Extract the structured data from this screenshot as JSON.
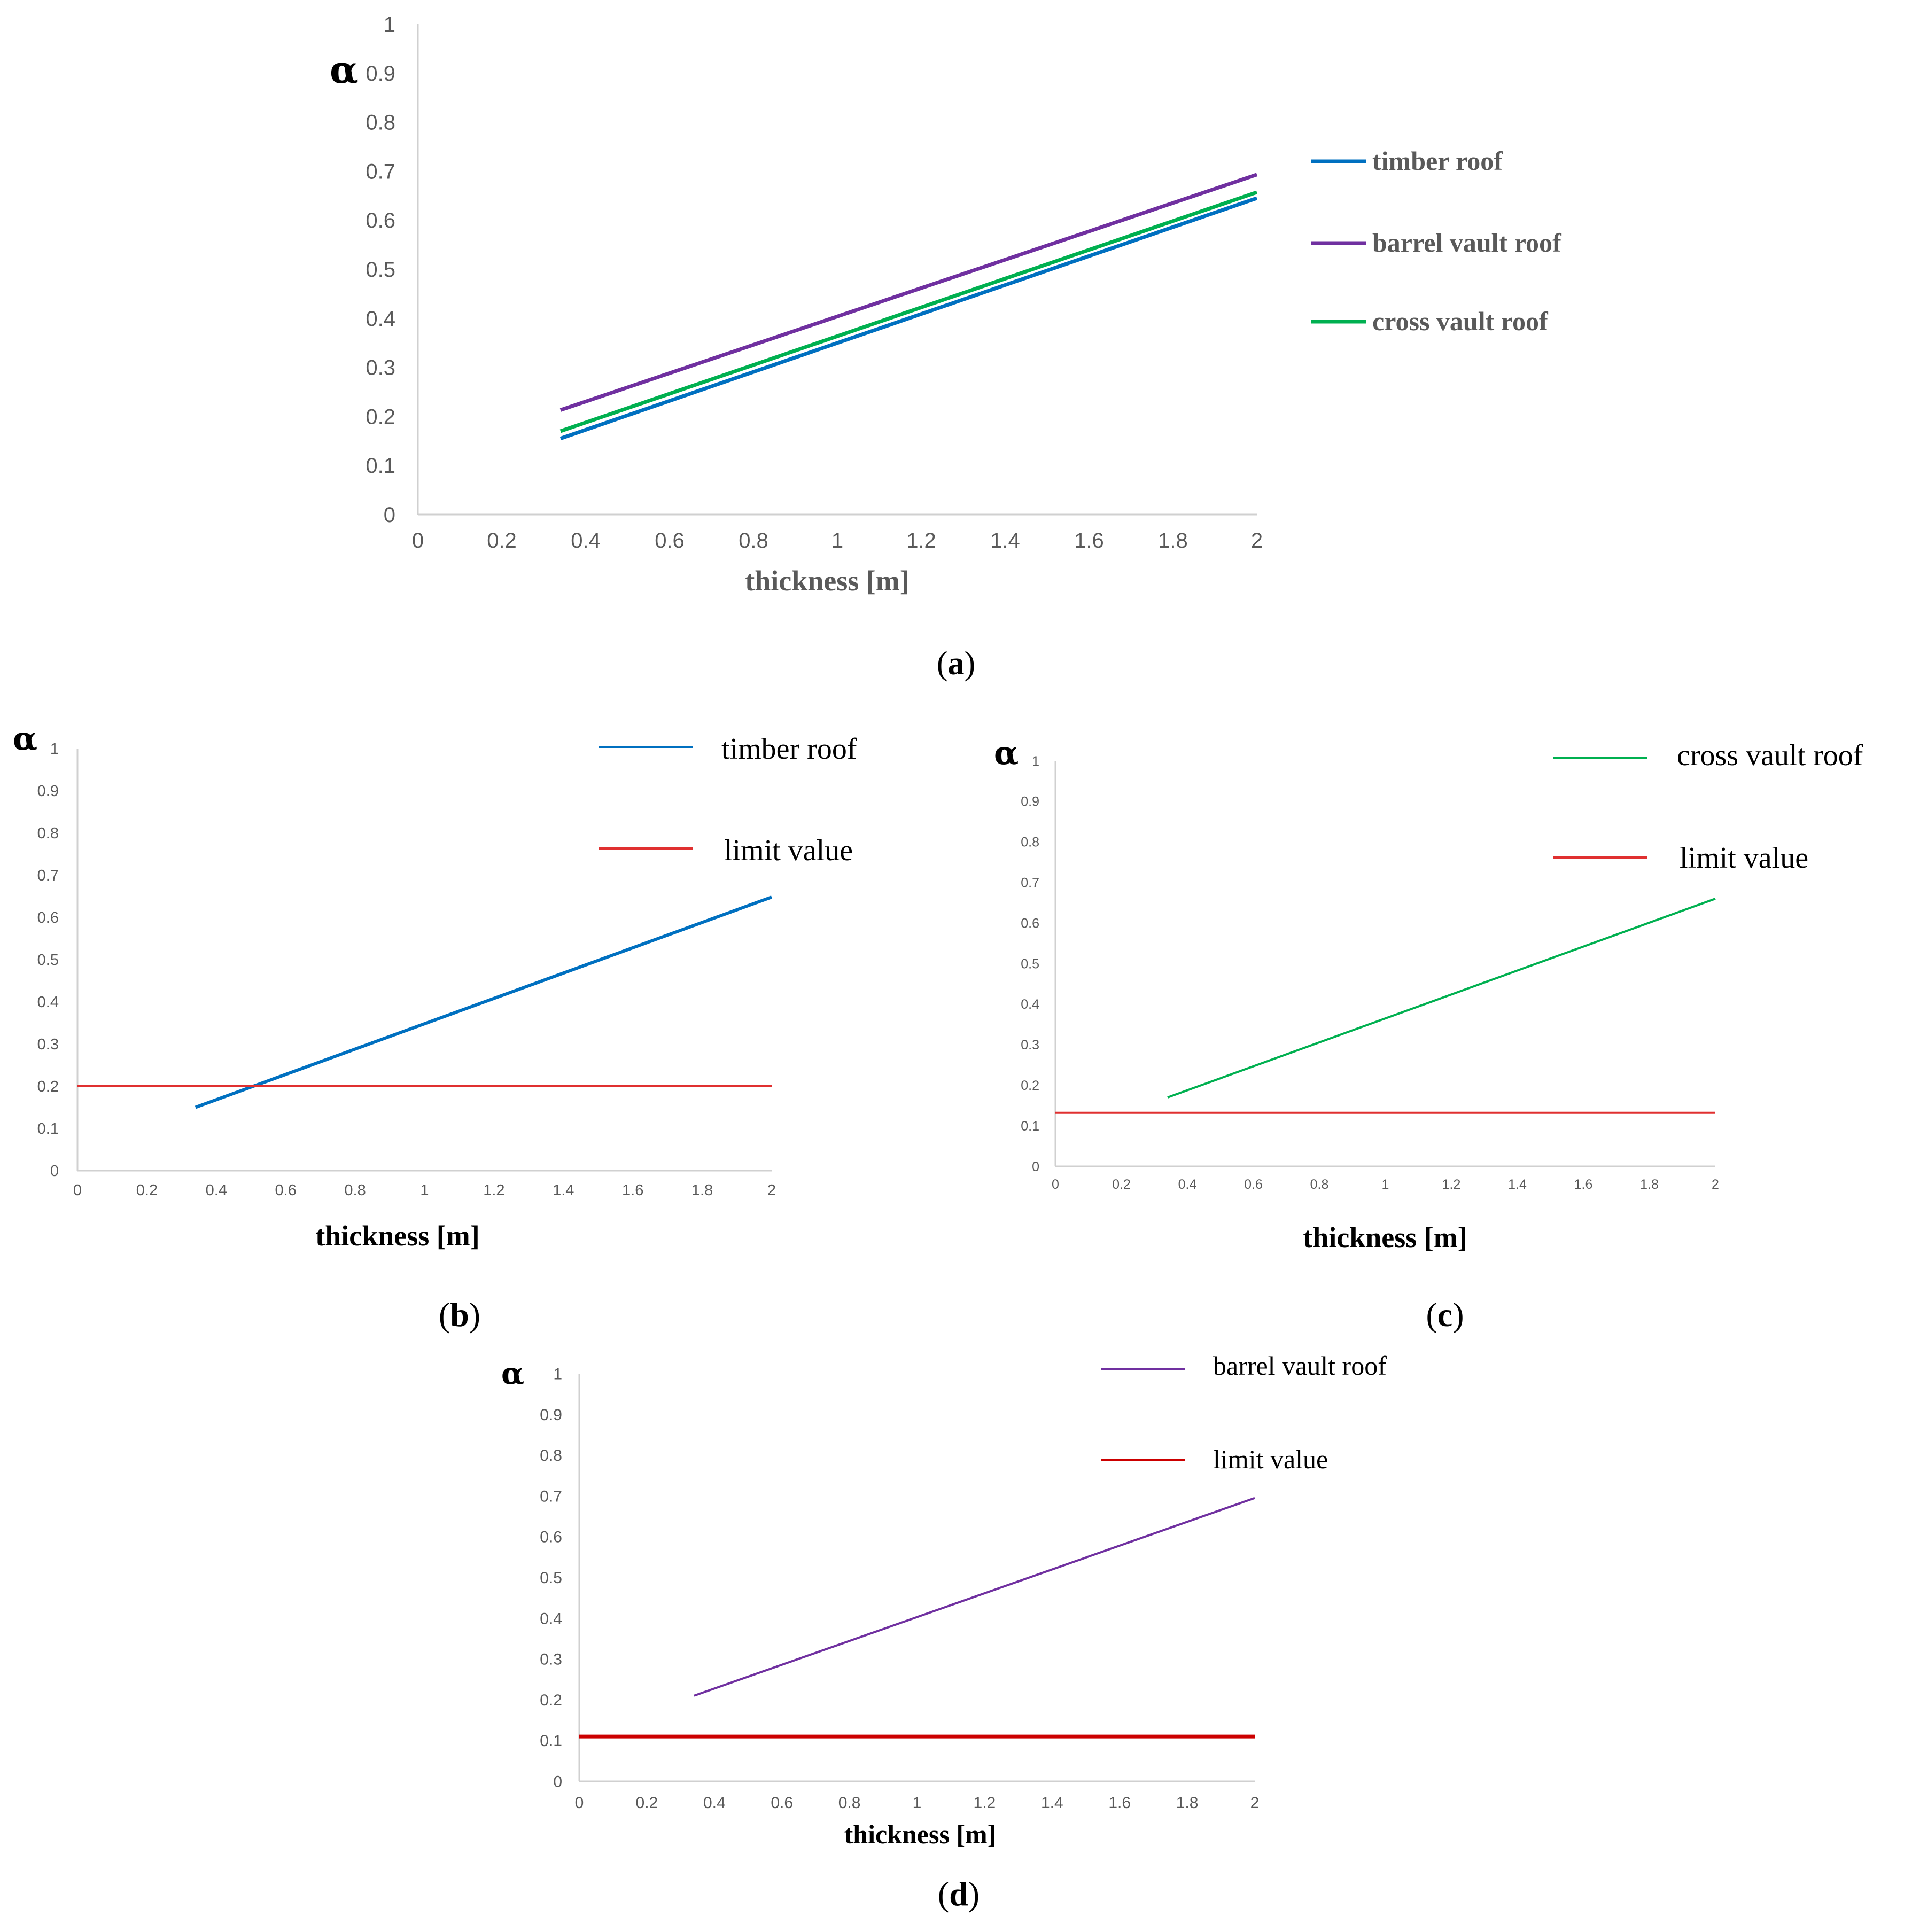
{
  "chart_data": [
    {
      "id": "a",
      "type": "line",
      "caption": "(a)",
      "ylabel": "α",
      "xlabel": "thickness [m]",
      "xlim": [
        0,
        2
      ],
      "ylim": [
        0,
        1
      ],
      "x_ticks": [
        "0",
        "0.2",
        "0.4",
        "0.6",
        "0.8",
        "1",
        "1.2",
        "1.4",
        "1.6",
        "1.8",
        "2"
      ],
      "y_ticks": [
        "0",
        "0.1",
        "0.2",
        "0.3",
        "0.4",
        "0.5",
        "0.6",
        "0.7",
        "0.8",
        "0.9",
        "1"
      ],
      "legend_position": "right",
      "series": [
        {
          "name": "timber roof",
          "color": "#0070C0",
          "x": [
            0.34,
            2
          ],
          "y": [
            0.155,
            0.645
          ]
        },
        {
          "name": "barrel vault roof",
          "color": "#7030A0",
          "x": [
            0.34,
            2
          ],
          "y": [
            0.213,
            0.693
          ]
        },
        {
          "name": "cross vault roof",
          "color": "#00B050",
          "x": [
            0.34,
            2
          ],
          "y": [
            0.17,
            0.657
          ]
        }
      ]
    },
    {
      "id": "b",
      "type": "line",
      "caption": "(b)",
      "ylabel": "α",
      "xlabel": "thickness [m]",
      "xlim": [
        0,
        2
      ],
      "ylim": [
        0,
        1
      ],
      "x_ticks": [
        "0",
        "0.2",
        "0.4",
        "0.6",
        "0.8",
        "1",
        "1.2",
        "1.4",
        "1.6",
        "1.8",
        "2"
      ],
      "y_ticks": [
        "0",
        "0.1",
        "0.2",
        "0.3",
        "0.4",
        "0.5",
        "0.6",
        "0.7",
        "0.8",
        "0.9",
        "1"
      ],
      "legend_position": "top-right",
      "series": [
        {
          "name": "timber roof",
          "color": "#0070C0",
          "x": [
            0.34,
            2
          ],
          "y": [
            0.15,
            0.648
          ]
        },
        {
          "name": "limit value",
          "color": "#E03030",
          "x": [
            0,
            2
          ],
          "y": [
            0.2,
            0.2
          ]
        }
      ]
    },
    {
      "id": "c",
      "type": "line",
      "caption": "(c)",
      "ylabel": "α",
      "xlabel": "thickness [m]",
      "xlim": [
        0,
        2
      ],
      "ylim": [
        0,
        1
      ],
      "x_ticks": [
        "0",
        "0.2",
        "0.4",
        "0.6",
        "0.8",
        "1",
        "1.2",
        "1.4",
        "1.6",
        "1.8",
        "2"
      ],
      "y_ticks": [
        "0",
        "0.1",
        "0.2",
        "0.3",
        "0.4",
        "0.5",
        "0.6",
        "0.7",
        "0.8",
        "0.9",
        "1"
      ],
      "legend_position": "top-right",
      "series": [
        {
          "name": "cross vault roof",
          "color": "#00B050",
          "x": [
            0.34,
            2
          ],
          "y": [
            0.17,
            0.66
          ]
        },
        {
          "name": "limit value",
          "color": "#E03030",
          "x": [
            0,
            2
          ],
          "y": [
            0.132,
            0.132
          ]
        }
      ]
    },
    {
      "id": "d",
      "type": "line",
      "caption": "(d)",
      "ylabel": "α",
      "xlabel": "thickness [m]",
      "xlim": [
        0,
        2
      ],
      "ylim": [
        0,
        1
      ],
      "x_ticks": [
        "0",
        "0.2",
        "0.4",
        "0.6",
        "0.8",
        "1",
        "1.2",
        "1.4",
        "1.6",
        "1.8",
        "2"
      ],
      "y_ticks": [
        "0",
        "0.1",
        "0.2",
        "0.3",
        "0.4",
        "0.5",
        "0.6",
        "0.7",
        "0.8",
        "0.9",
        "1"
      ],
      "legend_position": "top-right",
      "series": [
        {
          "name": "barrel vault roof",
          "color": "#7030A0",
          "x": [
            0.34,
            2
          ],
          "y": [
            0.21,
            0.695
          ]
        },
        {
          "name": "limit value",
          "color": "#CC0000",
          "x": [
            0,
            2
          ],
          "y": [
            0.11,
            0.11
          ]
        }
      ]
    }
  ]
}
